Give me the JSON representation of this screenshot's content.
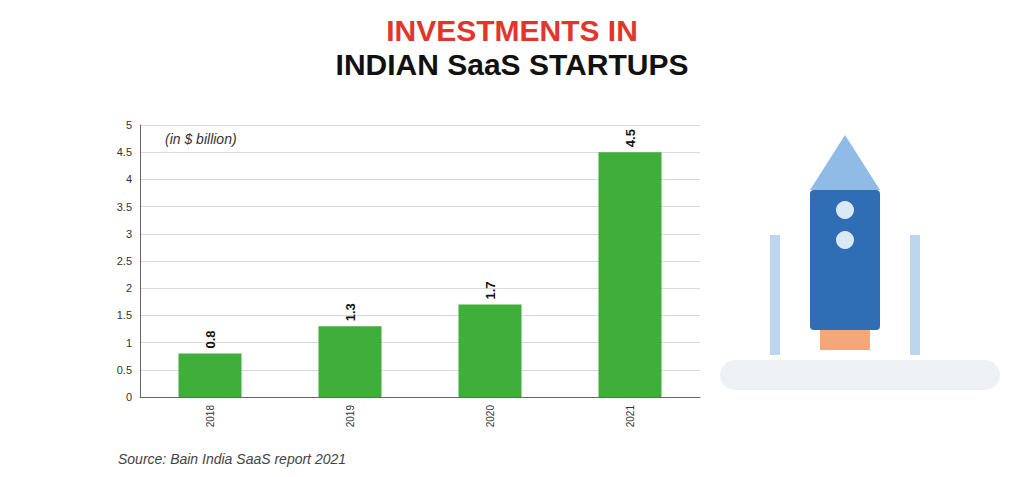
{
  "chart_data": {
    "type": "bar",
    "title": "INVESTMENTS IN INDIAN SaaS STARTUPS",
    "subtitle": "(in $ billion)",
    "annotations": [
      "Source: Bain India SaaS report 2021"
    ],
    "categories": [
      "2018",
      "2019",
      "2020",
      "2021"
    ],
    "values": [
      0.8,
      1.3,
      1.7,
      4.5
    ],
    "color": "#3fae3a",
    "ylim": [
      0,
      5
    ],
    "yticks": [
      0,
      0.5,
      1,
      1.5,
      2,
      2.5,
      3,
      3.5,
      4,
      4.5,
      5
    ],
    "grid": true,
    "data_labels": true
  }
}
